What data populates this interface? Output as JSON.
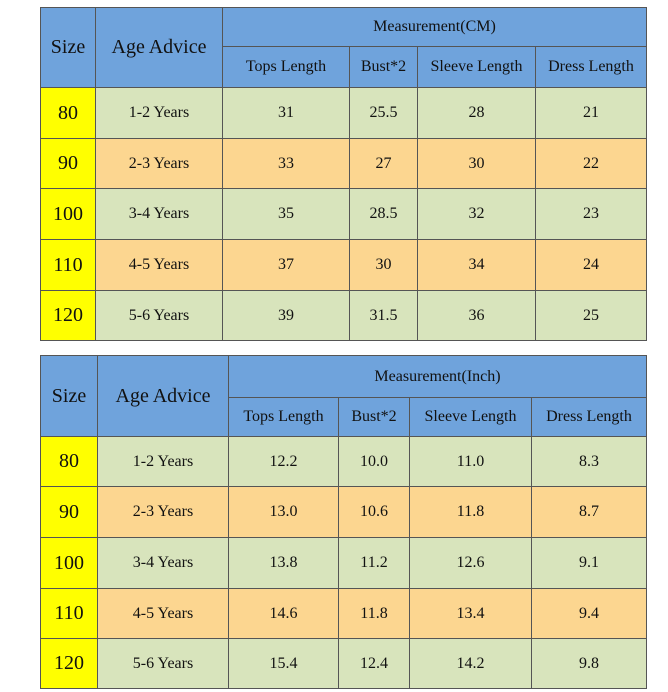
{
  "tables": [
    {
      "header": {
        "size": "Size",
        "age": "Age Advice",
        "group": "Measurement(CM)",
        "columns": [
          "Tops Length",
          "Bust*2",
          "Sleeve Length",
          "Dress Length"
        ]
      },
      "rows": [
        [
          "80",
          "1-2 Years",
          "31",
          "25.5",
          "28",
          "21"
        ],
        [
          "90",
          "2-3 Years",
          "33",
          "27",
          "30",
          "22"
        ],
        [
          "100",
          "3-4 Years",
          "35",
          "28.5",
          "32",
          "23"
        ],
        [
          "110",
          "4-5 Years",
          "37",
          "30",
          "34",
          "24"
        ],
        [
          "120",
          "5-6 Years",
          "39",
          "31.5",
          "36",
          "25"
        ]
      ]
    },
    {
      "header": {
        "size": "Size",
        "age": "Age Advice",
        "group": "Measurement(Inch)",
        "columns": [
          "Tops Length",
          "Bust*2",
          "Sleeve Length",
          "Dress Length"
        ]
      },
      "rows": [
        [
          "80",
          "1-2 Years",
          "12.2",
          "10.0",
          "11.0",
          "8.3"
        ],
        [
          "90",
          "2-3 Years",
          "13.0",
          "10.6",
          "11.8",
          "8.7"
        ],
        [
          "100",
          "3-4 Years",
          "13.8",
          "11.2",
          "12.6",
          "9.1"
        ],
        [
          "110",
          "4-5 Years",
          "14.6",
          "11.8",
          "13.4",
          "9.4"
        ],
        [
          "120",
          "5-6 Years",
          "15.4",
          "12.4",
          "14.2",
          "9.8"
        ]
      ]
    }
  ]
}
